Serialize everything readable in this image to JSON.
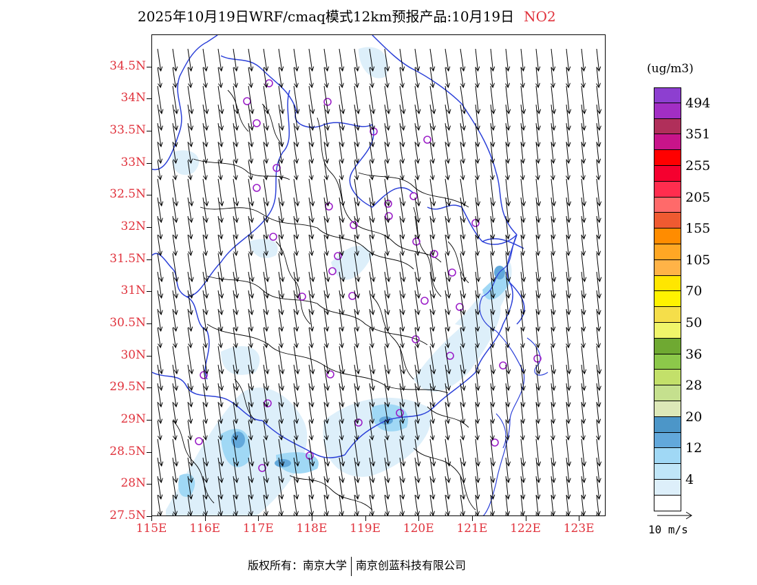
{
  "title": {
    "main": "2025年10月19日WRF/cmaq模式12km预报产品:10月19日",
    "pollutant": "NO2"
  },
  "y_axis_labels": [
    "34.5N",
    "34N",
    "33.5N",
    "33N",
    "32.5N",
    "32N",
    "31.5N",
    "31N",
    "30.5N",
    "30N",
    "29.5N",
    "29N",
    "28.5N",
    "28N",
    "27.5N"
  ],
  "x_axis_labels": [
    "115E",
    "116E",
    "117E",
    "118E",
    "119E",
    "120E",
    "121E",
    "122E",
    "123E"
  ],
  "colorbar": {
    "unit": "(ug/m3)",
    "colors": [
      "#8d3fd0",
      "#a22ec4",
      "#b02f5a",
      "#c8148a",
      "#ff0000",
      "#f5002f",
      "#ff2d4e",
      "#ff6a6a",
      "#ef5a31",
      "#ff8c00",
      "#ffa724",
      "#ffb347",
      "#ffe600",
      "#fff200",
      "#f5de4a",
      "#f0f56a",
      "#6fa932",
      "#8cc84a",
      "#c3e06a",
      "#c5e08e",
      "#dde8b8",
      "#4c96c8",
      "#62a8db",
      "#a0d8f5",
      "#c0e6f8",
      "#ddeffa",
      "#ffffff"
    ],
    "labels": [
      "494",
      "351",
      "255",
      "205",
      "155",
      "105",
      "70",
      "50",
      "36",
      "28",
      "20",
      "12",
      "4"
    ]
  },
  "wind_scale": {
    "label": "10 m/s"
  },
  "copyright": {
    "left": "版权所有：南京大学",
    "right": "南京创蓝科技有限公司"
  },
  "map_extent": {
    "lon_min": 115,
    "lon_max": 123.5,
    "lat_min": 27.5,
    "lat_max": 35
  }
}
